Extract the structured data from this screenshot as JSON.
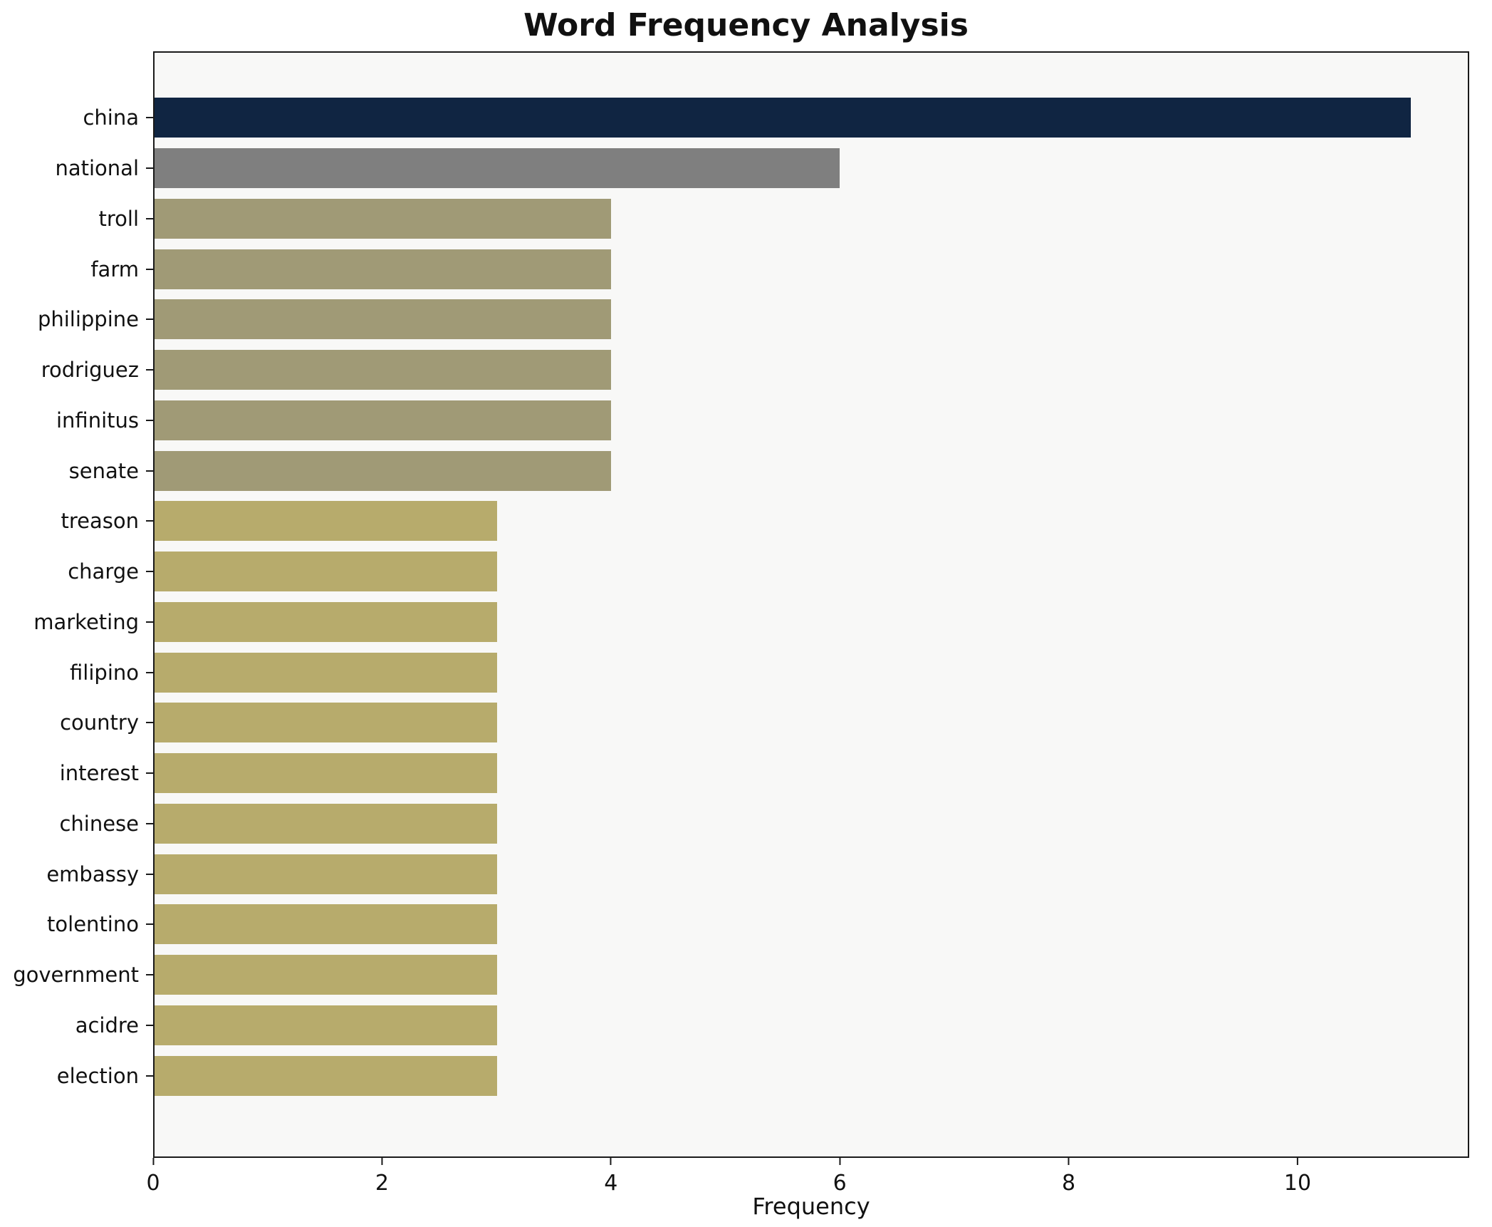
{
  "chart_data": {
    "type": "bar",
    "orientation": "horizontal",
    "title": "Word Frequency Analysis",
    "xlabel": "Frequency",
    "ylabel": "",
    "xlim": [
      0,
      11.5
    ],
    "xticks": [
      0,
      2,
      4,
      6,
      8,
      10
    ],
    "grid": false,
    "legend": false,
    "plot_background": "#f8f8f7",
    "categories": [
      "china",
      "national",
      "troll",
      "farm",
      "philippine",
      "rodriguez",
      "infinitus",
      "senate",
      "treason",
      "charge",
      "marketing",
      "filipino",
      "country",
      "interest",
      "chinese",
      "embassy",
      "tolentino",
      "government",
      "acidre",
      "election"
    ],
    "values": [
      11,
      6,
      4,
      4,
      4,
      4,
      4,
      4,
      3,
      3,
      3,
      3,
      3,
      3,
      3,
      3,
      3,
      3,
      3,
      3
    ],
    "colors": [
      "#102542",
      "#7f7f7f",
      "#a09a76",
      "#a09a76",
      "#a09a76",
      "#a09a76",
      "#a09a76",
      "#a09a76",
      "#b7ab6c",
      "#b7ab6c",
      "#b7ab6c",
      "#b7ab6c",
      "#b7ab6c",
      "#b7ab6c",
      "#b7ab6c",
      "#b7ab6c",
      "#b7ab6c",
      "#b7ab6c",
      "#b7ab6c",
      "#b7ab6c"
    ]
  }
}
